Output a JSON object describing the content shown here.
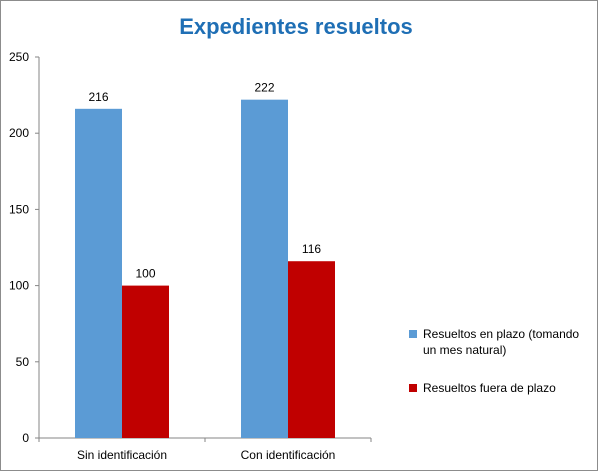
{
  "chart_data": {
    "type": "bar",
    "title": "Expedientes resueltos",
    "categories": [
      "Sin identificación",
      "Con identificación"
    ],
    "series": [
      {
        "name": "Resueltos en plazo (tomando un mes natural)",
        "values": [
          216,
          222
        ],
        "color": "#5b9bd5"
      },
      {
        "name": "Resueltos fuera de plazo",
        "values": [
          100,
          116
        ],
        "color": "#c00000"
      }
    ],
    "ylim": [
      0,
      250
    ],
    "yticks": [
      0,
      50,
      100,
      150,
      200,
      250
    ],
    "xlabel": "",
    "ylabel": "",
    "grid": false,
    "legend": "right",
    "title_color": "#1f6fb5"
  }
}
